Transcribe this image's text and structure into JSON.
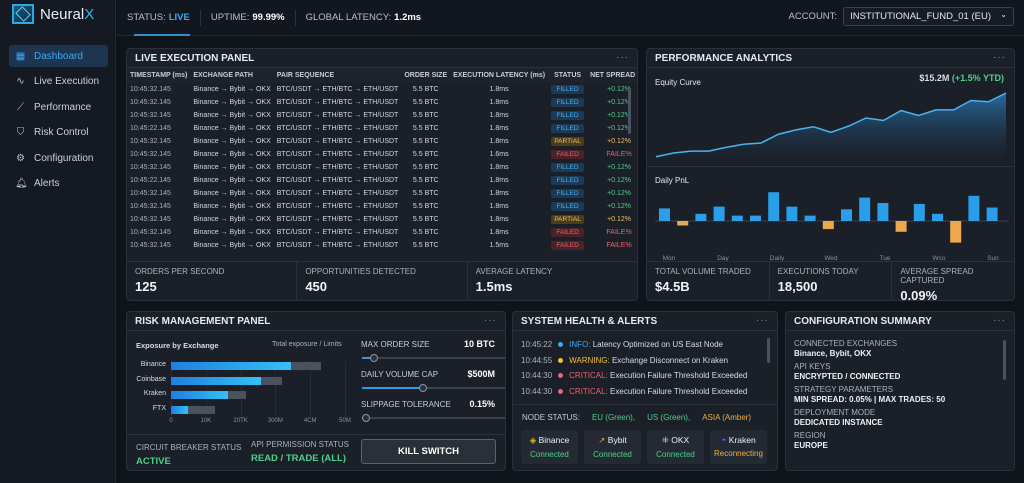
{
  "app": {
    "name_prefix": "Neural",
    "name_suffix": "X"
  },
  "sidebar": {
    "items": [
      {
        "label": "Dashboard",
        "icon": "grid-icon",
        "active": true
      },
      {
        "label": "Live Execution",
        "icon": "pulse-icon"
      },
      {
        "label": "Performance",
        "icon": "chart-line-icon"
      },
      {
        "label": "Risk Control",
        "icon": "shield-icon"
      },
      {
        "label": "Configuration",
        "icon": "gear-icon"
      },
      {
        "label": "Alerts",
        "icon": "bell-icon"
      }
    ]
  },
  "topbar": {
    "status_label": "STATUS:",
    "status_value": "LIVE",
    "uptime_label": "UPTIME:",
    "uptime_value": "99.99%",
    "latency_label": "GLOBAL LATENCY:",
    "latency_value": "1.2ms",
    "account_label": "ACCOUNT:",
    "account_value": "INSTITUTIONAL_FUND_01 (EU)"
  },
  "live": {
    "title": "LIVE EXECUTION PANEL",
    "columns": [
      "TIMESTAMP (ms)",
      "EXCHANGE PATH",
      "PAIR SEQUENCE",
      "ORDER SIZE",
      "EXECUTION LATENCY (ms)",
      "STATUS",
      "NET SPREAD (%)"
    ],
    "rows": [
      [
        "10:45:32.145",
        "Binance → Bybit → OKX",
        "BTC/USDT → ETH/BTC → ETH/USDT",
        "5.5 BTC",
        "1.8ms",
        "FILLED",
        "+0.12%"
      ],
      [
        "10:45:32.145",
        "Binance → Bybit → OKX",
        "BTC/USDT → ETH/BTC → ETH/USDT",
        "5.5 BTC",
        "1.8ms",
        "FILLED",
        "+0.12%"
      ],
      [
        "10:45:32.145",
        "Binance → Bybit → OKX",
        "BTC/USDT → ETH/BTC → ETH/USDT",
        "5.5 BTC",
        "1.8ms",
        "FILLED",
        "+0.12%"
      ],
      [
        "10:45:22.145",
        "Binance → Bybit → OKX",
        "BTC/USDT → ETH/BTC → ETH/USDT",
        "5.5 BTC",
        "1.8ms",
        "FILLED",
        "+0.12%"
      ],
      [
        "10:45:32.145",
        "Binance → Bybit → OKX",
        "BTC/USDT → ETH/BTC → ETH/USDT",
        "5.5 BTC",
        "1.8ms",
        "PARTIAL",
        "+0.12%"
      ],
      [
        "10:45:32.145",
        "Binance → Bybit → OKX",
        "BTC/USDT → ETH/BTC → ETH/USDT",
        "5.5 BTC",
        "1.6ms",
        "FAILED",
        "FAILE%"
      ],
      [
        "10:45:32.145",
        "Binance → Bybit → OKX",
        "BTC/USDT → ETH/BTC → ETH/USDT",
        "5.5 BTC",
        "1.8ms",
        "FILLED",
        "+0.12%"
      ],
      [
        "10:45:22.145",
        "Binance → Bybit → OKX",
        "BTC/USDT → ETH/BTC → ETH/USDT",
        "5.5 BTC",
        "1.8ms",
        "FILLED",
        "+0.12%"
      ],
      [
        "10:45:32.145",
        "Binance → Bybit → OKX",
        "BTC/USDT → ETH/BTC → ETH/USDT",
        "5.5 BTC",
        "1.8ms",
        "FILLED",
        "+0.12%"
      ],
      [
        "10:45:32.145",
        "Binance → Bybit → OKX",
        "BTC/USDT → ETH/BTC → ETH/USDT",
        "5.5 BTC",
        "1.8ms",
        "FILLED",
        "+0.12%"
      ],
      [
        "10:45:32.145",
        "Binance → Bybit → OKX",
        "BTC/USDT → ETH/BTC → ETH/USDT",
        "5.5 BTC",
        "1.8ms",
        "PARTIAL",
        "+0.12%"
      ],
      [
        "10:45:32.145",
        "Binance → Bybit → OKX",
        "BTC/USDT → ETH/BTC → ETH/USDT",
        "5.5 BTC",
        "1.8ms",
        "FAILED",
        "FAILE%"
      ],
      [
        "10:45:32.145",
        "Binance → Bybit → OKX",
        "BTC/USDT → ETH/BTC → ETH/USDT",
        "5.5 BTC",
        "1.5ms",
        "FAILED",
        "FAILE%"
      ]
    ],
    "stats": [
      {
        "label": "ORDERS PER SECOND",
        "value": "125"
      },
      {
        "label": "OPPORTUNITIES DETECTED",
        "value": "450"
      },
      {
        "label": "AVERAGE LATENCY",
        "value": "1.5ms"
      }
    ]
  },
  "perf": {
    "title": "PERFORMANCE ANALYTICS",
    "equity_label": "Equity Curve",
    "equity_value": "$15.2M",
    "equity_change": "(+1.5% YTD)",
    "pnl_label": "Daily PnL",
    "stats": [
      {
        "label": "TOTAL VOLUME TRADED",
        "value": "$4.5B"
      },
      {
        "label": "EXECUTIONS TODAY",
        "value": "18,500"
      },
      {
        "label": "AVERAGE SPREAD CAPTURED",
        "value": "0.09%"
      }
    ]
  },
  "chart_data": [
    {
      "type": "area",
      "title": "Equity Curve",
      "values": [
        1,
        1.6,
        1.9,
        1.9,
        2.5,
        3.0,
        3.2,
        4.6,
        5.3,
        5.8,
        4.9,
        5.9,
        7.2,
        6.8,
        8.4,
        7.6,
        8.5,
        8.5,
        10.0,
        9.8,
        11.2
      ]
    },
    {
      "type": "bar",
      "title": "Daily PnL",
      "values": [
        0.7,
        -0.25,
        0.4,
        0.8,
        0.3,
        0.3,
        1.6,
        0.8,
        0.3,
        -0.45,
        0.65,
        1.3,
        1.0,
        -0.6,
        0.95,
        0.4,
        -1.2,
        1.4,
        0.75
      ],
      "tick_labels": [
        "Mon",
        "Day",
        "Daily",
        "Wed",
        "Tue",
        "Wco",
        "Sun"
      ],
      "colors": {
        "positive": "#2a9ee8",
        "negative": "#f0a850"
      }
    }
  ],
  "risk": {
    "title": "RISK MANAGEMENT PANEL",
    "exposure_title": "Exposure by Exchange",
    "exposure_legend": "Total exposure / Limits",
    "exposures": [
      {
        "name": "Binance",
        "exposure": 0.69,
        "limit": 0.86
      },
      {
        "name": "Coinbase",
        "exposure": 0.52,
        "limit": 0.64
      },
      {
        "name": "Kraken",
        "exposure": 0.33,
        "limit": 0.43
      },
      {
        "name": "FTX",
        "exposure": 0.1,
        "limit": 0.25
      }
    ],
    "axis_ticks": [
      "0",
      "10K",
      "20TK",
      "300M",
      "4CM",
      "50M"
    ],
    "sliders": [
      {
        "label": "MAX ORDER SIZE",
        "value": "10 BTC",
        "level": 0.05
      },
      {
        "label": "DAILY VOLUME CAP",
        "value": "$500M",
        "level": 0.38
      },
      {
        "label": "SLIPPAGE TOLERANCE",
        "value": "0.15%",
        "level": 0.0
      }
    ],
    "circuit_label": "CIRCUIT BREAKER STATUS",
    "circuit_value": "ACTIVE",
    "api_label": "API PERMISSION STATUS",
    "api_value": "READ / TRADE (ALL)",
    "kill_label": "KILL SWITCH"
  },
  "health": {
    "title": "SYSTEM HEALTH & ALERTS",
    "alerts": [
      {
        "time": "10:45:22",
        "level": "INFO:",
        "msg": "Latency Optimized on US East Node",
        "color": "#3fa9f0"
      },
      {
        "time": "10:44:55",
        "level": "WARNING:",
        "msg": "Exchange Disconnect on Kraken",
        "color": "#f0c040"
      },
      {
        "time": "10:44:30",
        "level": "CRITICAL:",
        "msg": "Execution Failure Threshold Exceeded",
        "color": "#f06070"
      },
      {
        "time": "10:44:30",
        "level": "CRITICAL:",
        "msg": "Execution Failure Threshold Exceeded",
        "color": "#f06070"
      }
    ],
    "node_label": "NODE STATUS:",
    "nodes": [
      "EU (Green),",
      "US (Green),",
      "ASIA (Amber)"
    ],
    "exchanges": [
      {
        "name": "Binance",
        "status": "Connected",
        "icon": "binance-icon"
      },
      {
        "name": "Bybit",
        "status": "Connected",
        "icon": "bybit-icon"
      },
      {
        "name": "OKX",
        "status": "Connected",
        "icon": "okx-icon"
      },
      {
        "name": "Kraken",
        "status": "Reconnecting",
        "icon": "kraken-icon"
      }
    ]
  },
  "config": {
    "title": "CONFIGURATION SUMMARY",
    "items": [
      {
        "label": "CONNECTED EXCHANGES",
        "value": "Binance, Bybit, OKX"
      },
      {
        "label": "API KEYS",
        "value": "ENCRYPTED / CONNECTED"
      },
      {
        "label": "STRATEGY PARAMETERS",
        "value": "MIN SPREAD: 0.05% | MAX TRADES: 50"
      },
      {
        "label": "DEPLOYMENT MODE",
        "value": "DEDICATED INSTANCE"
      },
      {
        "label": "REGION",
        "value": "EUROPE"
      }
    ]
  }
}
